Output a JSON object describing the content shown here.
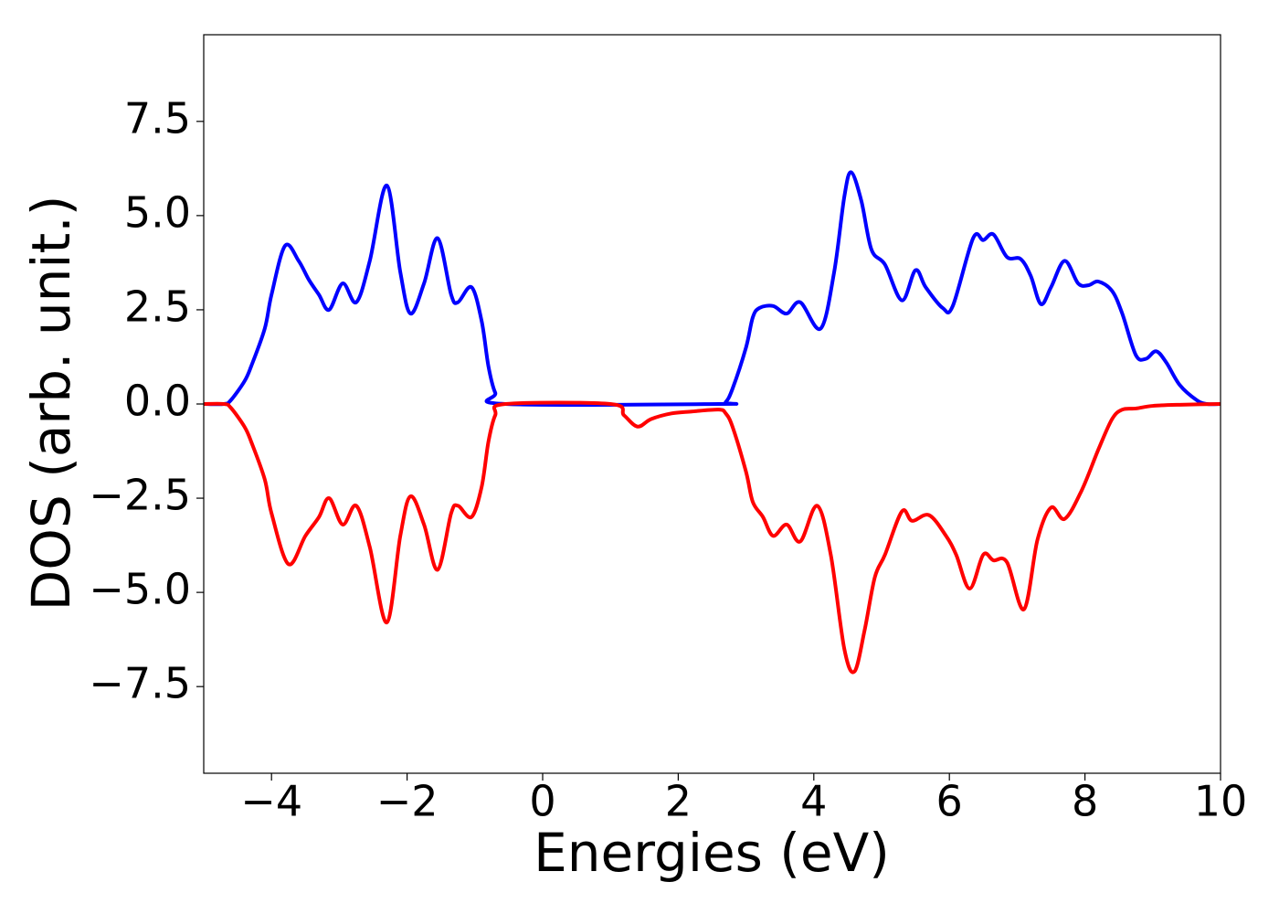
{
  "chart_data": {
    "type": "line",
    "xlabel": "Energies (eV)",
    "ylabel": "DOS (arb. unit.)",
    "xlim": [
      -5,
      10
    ],
    "xticks": [
      {
        "value": -4,
        "label": "−4"
      },
      {
        "value": -2,
        "label": "−2"
      },
      0,
      2,
      4,
      6,
      8,
      10
    ],
    "ylim": [
      -9.8,
      9.8
    ],
    "yticks": [
      {
        "value": -7.5,
        "label": "−7.5"
      },
      {
        "value": -5,
        "label": "−5.0"
      },
      {
        "value": -2.5,
        "label": "−2.5"
      },
      {
        "value": 0,
        "label": "0.0"
      },
      {
        "value": 2.5,
        "label": "2.5"
      },
      {
        "value": 5,
        "label": "5.0"
      },
      {
        "value": 7.5,
        "label": "7.5"
      }
    ],
    "grid": false,
    "series": [
      {
        "color": "#0000ff",
        "x": [
          -5,
          -4.7,
          -4.6,
          -4.4,
          -4.3,
          -4.1,
          -4.0,
          -3.8,
          -3.6,
          -3.45,
          -3.3,
          -3.15,
          -2.95,
          -2.75,
          -2.55,
          -2.3,
          -2.1,
          -1.95,
          -1.75,
          -1.55,
          -1.35,
          -1.25,
          -1.05,
          -0.9,
          -0.8,
          -0.7,
          -0.55,
          2.6,
          2.7,
          2.8,
          3.0,
          3.1,
          3.2,
          3.4,
          3.6,
          3.8,
          4.1,
          4.3,
          4.45,
          4.55,
          4.7,
          4.85,
          5.05,
          5.3,
          5.5,
          5.65,
          5.9,
          6.05,
          6.35,
          6.5,
          6.65,
          6.85,
          7.05,
          7.2,
          7.35,
          7.5,
          7.7,
          7.9,
          8.05,
          8.2,
          8.4,
          8.55,
          8.75,
          8.9,
          9.05,
          9.2,
          9.4,
          9.65,
          9.8,
          10
        ],
        "values": [
          0,
          0,
          0.1,
          0.6,
          1.0,
          2.0,
          2.9,
          4.2,
          3.8,
          3.3,
          2.9,
          2.5,
          3.2,
          2.7,
          3.8,
          5.8,
          3.5,
          2.4,
          3.2,
          4.4,
          2.9,
          2.7,
          3.1,
          2.2,
          1.0,
          0.3,
          0,
          0,
          0.05,
          0.4,
          1.5,
          2.3,
          2.55,
          2.6,
          2.4,
          2.7,
          2.0,
          3.5,
          5.5,
          6.15,
          5.4,
          4.1,
          3.7,
          2.75,
          3.55,
          3.1,
          2.55,
          2.6,
          4.4,
          4.35,
          4.5,
          3.9,
          3.85,
          3.4,
          2.65,
          3.1,
          3.8,
          3.2,
          3.15,
          3.25,
          3.0,
          2.4,
          1.3,
          1.2,
          1.4,
          1.1,
          0.5,
          0.1,
          0,
          0
        ]
      },
      {
        "color": "#ff0000",
        "x": [
          -5,
          -4.7,
          -4.6,
          -4.4,
          -4.3,
          -4.1,
          -4.0,
          -3.75,
          -3.5,
          -3.3,
          -3.15,
          -2.95,
          -2.75,
          -2.55,
          -2.3,
          -2.1,
          -1.95,
          -1.75,
          -1.55,
          -1.35,
          -1.25,
          -1.05,
          -0.9,
          -0.8,
          -0.7,
          -0.55,
          1.0,
          1.2,
          1.4,
          1.6,
          1.9,
          2.2,
          2.6,
          2.7,
          2.8,
          3.0,
          3.1,
          3.25,
          3.4,
          3.6,
          3.8,
          4.05,
          4.25,
          4.45,
          4.6,
          4.75,
          4.9,
          5.05,
          5.3,
          5.45,
          5.7,
          5.95,
          6.1,
          6.3,
          6.5,
          6.65,
          6.85,
          7.1,
          7.3,
          7.5,
          7.7,
          7.95,
          8.2,
          8.4,
          8.55,
          8.75,
          9.0,
          9.4,
          10
        ],
        "values": [
          0,
          0,
          -0.1,
          -0.6,
          -1.0,
          -2.0,
          -2.9,
          -4.25,
          -3.5,
          -3.0,
          -2.5,
          -3.2,
          -2.7,
          -3.8,
          -5.8,
          -3.5,
          -2.45,
          -3.2,
          -4.4,
          -2.9,
          -2.7,
          -3.0,
          -2.2,
          -1.0,
          -0.3,
          0,
          0,
          -0.3,
          -0.6,
          -0.4,
          -0.25,
          -0.2,
          -0.15,
          -0.25,
          -0.6,
          -1.8,
          -2.6,
          -3.0,
          -3.5,
          -3.2,
          -3.65,
          -2.7,
          -4.0,
          -6.5,
          -7.1,
          -6.0,
          -4.6,
          -4.0,
          -2.85,
          -3.1,
          -2.95,
          -3.5,
          -4.0,
          -4.9,
          -4.0,
          -4.15,
          -4.2,
          -5.45,
          -3.6,
          -2.75,
          -3.05,
          -2.3,
          -1.2,
          -0.4,
          -0.15,
          -0.12,
          -0.05,
          -0.02,
          0
        ]
      }
    ]
  }
}
